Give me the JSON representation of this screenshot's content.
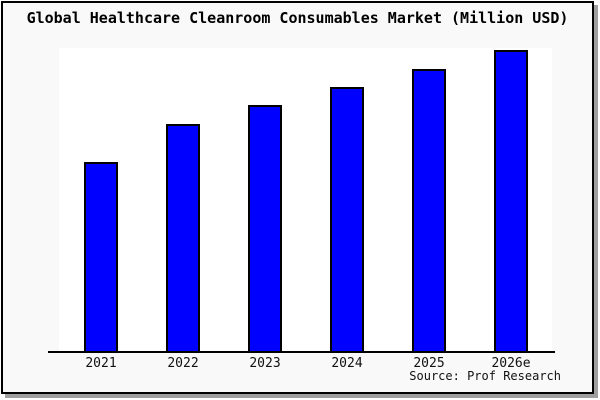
{
  "title": "Global Healthcare Cleanroom Consumables Market (Million USD)",
  "source_credit": "Source: Prof Research",
  "colors": {
    "card_background": "#f9f9f9",
    "frame_border": "#000000",
    "shadow": "#9f9f9f",
    "plot_background": "#ffffff",
    "bar_fill": "#0000ff",
    "bar_border": "#000000",
    "text": "#000000"
  },
  "chart_data": {
    "type": "bar",
    "title": "Global Healthcare Cleanroom Consumables Market (Million USD)",
    "categories": [
      "2021",
      "2022",
      "2023",
      "2024",
      "2025",
      "2026e"
    ],
    "values": [
      62.4,
      74.9,
      81.2,
      87.1,
      93.1,
      99.3
    ],
    "value_unit": "percent_of_plot_height (no numeric y-axis shown in image)",
    "xlabel": "",
    "ylabel": "",
    "ylim": [
      0,
      100
    ],
    "grid": false,
    "legend": false,
    "annotations": [
      "Source: Prof Research"
    ]
  }
}
